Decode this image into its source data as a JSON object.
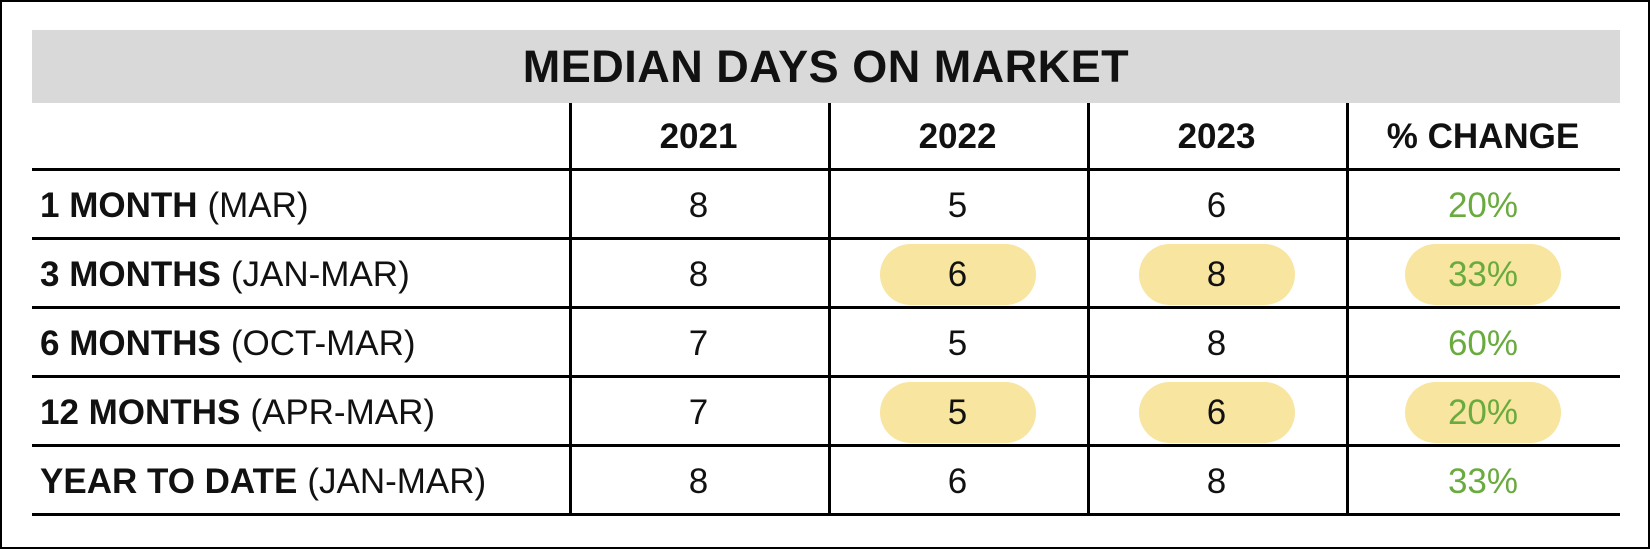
{
  "chart_data": {
    "type": "table",
    "title": "MEDIAN DAYS ON MARKET",
    "columns": [
      "",
      "2021",
      "2022",
      "2023",
      "% CHANGE"
    ],
    "rows": [
      {
        "period": "1 MONTH",
        "range": "(MAR)",
        "v2021": "8",
        "v2022": "5",
        "v2023": "6",
        "change": "20%",
        "highlight": false
      },
      {
        "period": "3 MONTHS",
        "range": "(JAN-MAR)",
        "v2021": "8",
        "v2022": "6",
        "v2023": "8",
        "change": "33%",
        "highlight": true
      },
      {
        "period": "6 MONTHS",
        "range": "(OCT-MAR)",
        "v2021": "7",
        "v2022": "5",
        "v2023": "8",
        "change": "60%",
        "highlight": false
      },
      {
        "period": "12 MONTHS",
        "range": "(APR-MAR)",
        "v2021": "7",
        "v2022": "5",
        "v2023": "6",
        "change": "20%",
        "highlight": true
      },
      {
        "period": "YEAR TO DATE",
        "range": "(JAN-MAR)",
        "v2021": "8",
        "v2022": "6",
        "v2023": "8",
        "change": "33%",
        "highlight": false
      }
    ]
  },
  "colors": {
    "title_background": "#d9d9d9",
    "highlight": "#f8e59f",
    "change_text": "#6aab3f",
    "rule_lines": "#000000"
  }
}
